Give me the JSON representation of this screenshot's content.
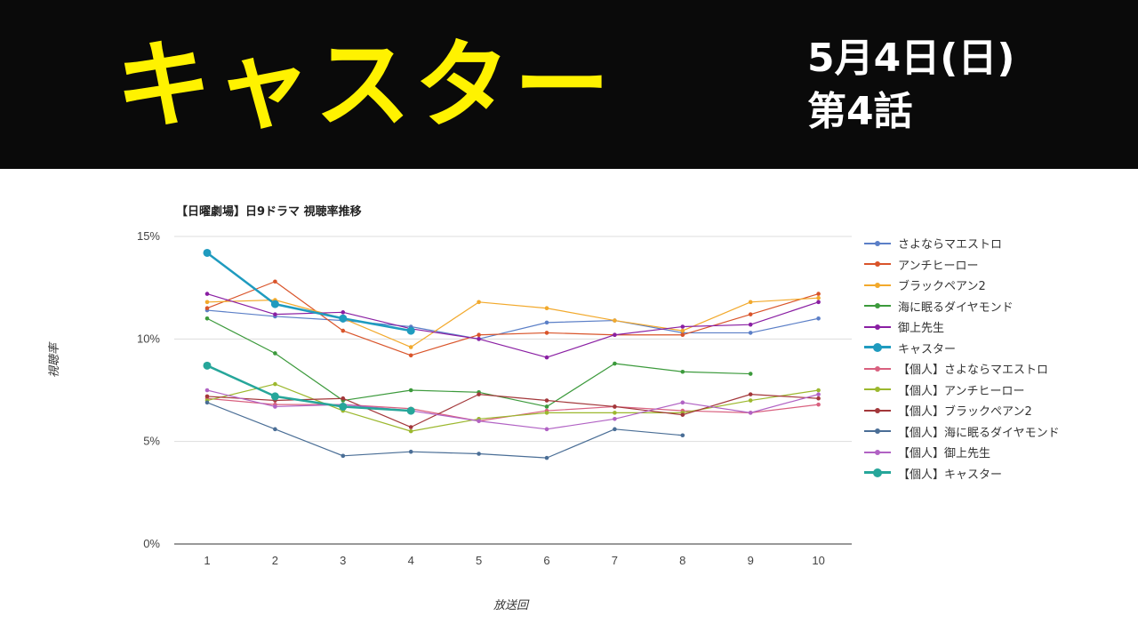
{
  "banner": {
    "title": "キャスター",
    "date": "5月4日(日)",
    "episode": "第4話"
  },
  "chart_data": {
    "type": "line",
    "title": "【日曜劇場】日9ドラマ 視聴率推移",
    "xlabel": "放送回",
    "ylabel": "視聴率",
    "ylim": [
      0,
      15
    ],
    "y_ticks": [
      "0%",
      "5%",
      "10%",
      "15%"
    ],
    "categories": [
      "1",
      "2",
      "3",
      "4",
      "5",
      "6",
      "7",
      "8",
      "9",
      "10"
    ],
    "grid": true,
    "legend_position": "right",
    "series": [
      {
        "name": "さよならマエストロ",
        "color": "#5b7fc7",
        "values": [
          11.4,
          11.1,
          10.9,
          10.6,
          10.0,
          10.8,
          10.9,
          10.3,
          10.3,
          11.0
        ]
      },
      {
        "name": "アンチヒーロー",
        "color": "#d9542a",
        "values": [
          11.5,
          12.8,
          10.4,
          9.2,
          10.2,
          10.3,
          10.2,
          10.2,
          11.2,
          12.2
        ]
      },
      {
        "name": "ブラックペアン2",
        "color": "#f2a92c",
        "values": [
          11.8,
          11.9,
          11.0,
          9.6,
          11.8,
          11.5,
          10.9,
          10.4,
          11.8,
          12.0
        ]
      },
      {
        "name": "海に眠るダイヤモンド",
        "color": "#3c9a3c",
        "values": [
          11.0,
          9.3,
          7.0,
          7.5,
          7.4,
          6.7,
          8.8,
          8.4,
          8.3,
          null
        ]
      },
      {
        "name": "御上先生",
        "color": "#8a1fa3",
        "values": [
          12.2,
          11.2,
          11.3,
          10.5,
          10.0,
          9.1,
          10.2,
          10.6,
          10.7,
          11.8
        ]
      },
      {
        "name": "キャスター",
        "color": "#1f9bbf",
        "values": [
          14.2,
          11.7,
          11.0,
          10.4,
          null,
          null,
          null,
          null,
          null,
          null
        ]
      },
      {
        "name": "【個人】さよならマエストロ",
        "color": "#d9607f",
        "values": [
          7.1,
          6.8,
          6.8,
          6.6,
          6.0,
          6.5,
          6.7,
          6.5,
          6.4,
          6.8
        ]
      },
      {
        "name": "【個人】アンチヒーロー",
        "color": "#9cb82e",
        "values": [
          7.0,
          7.8,
          6.5,
          5.5,
          6.1,
          6.4,
          6.4,
          6.4,
          7.0,
          7.5
        ]
      },
      {
        "name": "【個人】ブラックペアン2",
        "color": "#a3373a",
        "values": [
          7.2,
          7.0,
          7.1,
          5.7,
          7.3,
          7.0,
          6.7,
          6.3,
          7.3,
          7.1
        ]
      },
      {
        "name": "【個人】海に眠るダイヤモンド",
        "color": "#4a6e96",
        "values": [
          6.9,
          5.6,
          4.3,
          4.5,
          4.4,
          4.2,
          5.6,
          5.3,
          null,
          null
        ]
      },
      {
        "name": "【個人】御上先生",
        "color": "#b162c4",
        "values": [
          7.5,
          6.7,
          6.8,
          6.5,
          6.0,
          5.6,
          6.1,
          6.9,
          6.4,
          7.3
        ]
      },
      {
        "name": "【個人】キャスター",
        "color": "#26a69a",
        "values": [
          8.7,
          7.2,
          6.7,
          6.5,
          null,
          null,
          null,
          null,
          null,
          null
        ]
      }
    ]
  }
}
